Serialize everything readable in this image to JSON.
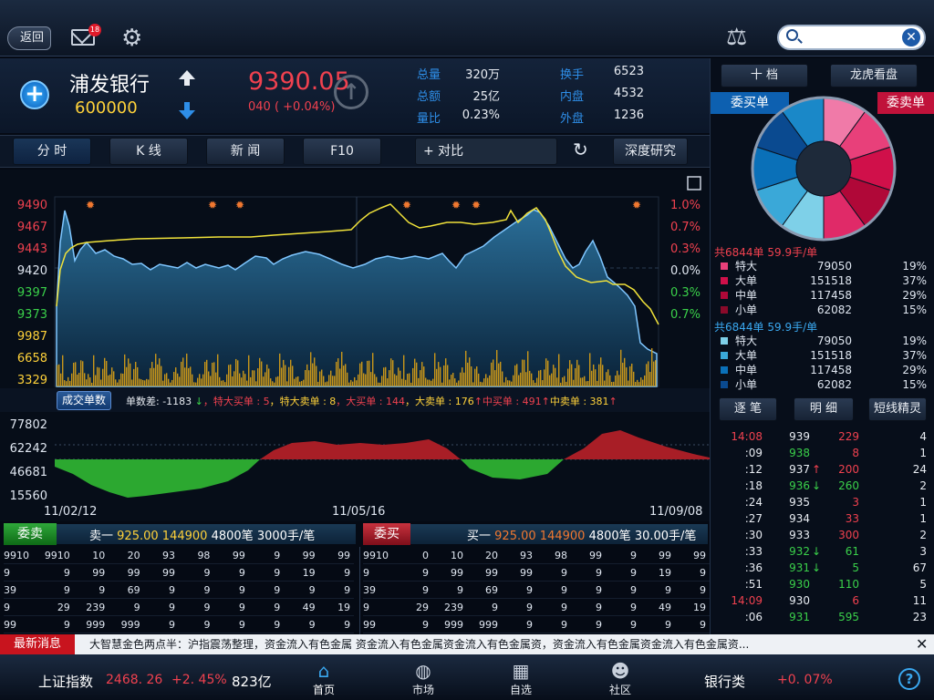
{
  "topbar": {
    "back_label": "返回",
    "mail_count": "18"
  },
  "stock": {
    "name": "浦发银行",
    "code": "600000",
    "price": "9390.05",
    "change": "040 ( +0.04%)",
    "stats": [
      {
        "k": "总量",
        "v": "320万"
      },
      {
        "k": "总额",
        "v": "25亿"
      },
      {
        "k": "量比",
        "v": "0.23%"
      },
      {
        "k": "换手",
        "v": "6523"
      },
      {
        "k": "内盘",
        "v": "4532"
      },
      {
        "k": "外盘",
        "v": "1236"
      }
    ]
  },
  "tabs": [
    "分 时",
    "K 线",
    "新 闻",
    "F10",
    "+ 对比",
    "深度研究"
  ],
  "chart": {
    "left_ticks": [
      {
        "t": "9490",
        "c": "#f0414f"
      },
      {
        "t": "9467",
        "c": "#f0414f"
      },
      {
        "t": "9443",
        "c": "#f0414f"
      },
      {
        "t": "9420",
        "c": "#dfe6f0"
      },
      {
        "t": "9397",
        "c": "#3ad04a"
      },
      {
        "t": "9373",
        "c": "#3ad04a"
      },
      {
        "t": "9987",
        "c": "#ffd23a"
      },
      {
        "t": "6658",
        "c": "#ffd23a"
      },
      {
        "t": "3329",
        "c": "#ffd23a"
      }
    ],
    "right_ticks": [
      {
        "t": "1.0%",
        "c": "#f0414f"
      },
      {
        "t": "0.7%",
        "c": "#f0414f"
      },
      {
        "t": "0.3%",
        "c": "#f0414f"
      },
      {
        "t": "0.0%",
        "c": "#dfe6f0"
      },
      {
        "t": "0.3%",
        "c": "#3ad04a"
      },
      {
        "t": "0.7%",
        "c": "#3ad04a"
      }
    ]
  },
  "volume_bar": {
    "label": "成交单数",
    "items": [
      {
        "t": "单数差: -1183 ",
        "c": "#e8ecf2"
      },
      {
        "t": "↓",
        "c": "#3ad04a"
      },
      {
        "t": "，特大买单  : 5",
        "c": "#f0414f"
      },
      {
        "t": "，特大卖单 : 8",
        "c": "#ffd23a"
      },
      {
        "t": "，大买单 : 144",
        "c": "#f0414f"
      },
      {
        "t": "，大卖单 : 176",
        "c": "#ffd23a"
      },
      {
        "t": "↑",
        "c": "#f0414f"
      },
      {
        "t": "中买单 : 491",
        "c": "#f0414f"
      },
      {
        "t": "↑",
        "c": "#f0414f"
      },
      {
        "t": "中卖单 : 381",
        "c": "#ffd23a"
      },
      {
        "t": "↑",
        "c": "#f0414f"
      }
    ]
  },
  "pankou_ticks": [
    "77802",
    "62242",
    "46681",
    "15560"
  ],
  "dates": [
    "11/02/12",
    "11/05/16",
    "11/09/08"
  ],
  "wm": {
    "sell_label": "委卖",
    "buy_label": "委买",
    "sell_head": [
      "卖一",
      "925.00",
      "144900",
      "4800笔",
      "3000手/笔"
    ],
    "buy_head": [
      "买一",
      "925.00",
      "144900",
      "4800笔",
      "30.00手/笔"
    ],
    "sell_rows": [
      [
        "9910",
        "9910",
        "10",
        "20",
        "93",
        "98",
        "99",
        "9",
        "99",
        "99"
      ],
      [
        "9",
        "9",
        "99",
        "99",
        "99",
        "9",
        "9",
        "9",
        "19",
        "9"
      ],
      [
        "39",
        "9",
        "9",
        "69",
        "9",
        "9",
        "9",
        "9",
        "9",
        "9"
      ],
      [
        "9",
        "29",
        "239",
        "9",
        "9",
        "9",
        "9",
        "9",
        "49",
        "19"
      ],
      [
        "99",
        "9",
        "999",
        "999",
        "9",
        "9",
        "9",
        "9",
        "9",
        "9"
      ]
    ],
    "buy_rows": [
      [
        "9910",
        "0",
        "10",
        "20",
        "93",
        "98",
        "99",
        "9",
        "99",
        "99"
      ],
      [
        "9",
        "9",
        "99",
        "99",
        "99",
        "9",
        "9",
        "9",
        "19",
        "9"
      ],
      [
        "39",
        "9",
        "9",
        "69",
        "9",
        "9",
        "9",
        "9",
        "9",
        "9"
      ],
      [
        "9",
        "29",
        "239",
        "9",
        "9",
        "9",
        "9",
        "9",
        "49",
        "19"
      ],
      [
        "99",
        "9",
        "999",
        "999",
        "9",
        "9",
        "9",
        "9",
        "9",
        "9"
      ]
    ]
  },
  "right": {
    "tabs": [
      "十 档",
      "龙虎看盘"
    ],
    "buy_title": "委买单",
    "sell_title": "委卖单",
    "pie": {
      "left_colors": [
        "#7ed0e8",
        "#3aa8d8",
        "#0a70b8",
        "#0a4a90",
        "#1a88c8"
      ],
      "right_colors": [
        "#f07aa8",
        "#e8407a",
        "#d0104a",
        "#b00838",
        "#e02a68"
      ]
    },
    "sum1": "共6844单  59.9手/单",
    "group1": [
      {
        "n": "特大",
        "v": "79050",
        "p": "19%",
        "c": "#e8407a"
      },
      {
        "n": "大单",
        "v": "151518",
        "p": "37%",
        "c": "#d0104a"
      },
      {
        "n": "中单",
        "v": "117458",
        "p": "29%",
        "c": "#b00838"
      },
      {
        "n": "小单",
        "v": "62082",
        "p": "15%",
        "c": "#8a0a2a"
      }
    ],
    "sum2": "共6844单  59.9手/单",
    "group2": [
      {
        "n": "特大",
        "v": "79050",
        "p": "19%",
        "c": "#7ed0e8"
      },
      {
        "n": "大单",
        "v": "151518",
        "p": "37%",
        "c": "#3aa8d8"
      },
      {
        "n": "中单",
        "v": "117458",
        "p": "29%",
        "c": "#0a70b8"
      },
      {
        "n": "小单",
        "v": "62082",
        "p": "15%",
        "c": "#0a4a90"
      }
    ],
    "tick_tabs": [
      "逐 笔",
      "明 细",
      "短线精灵"
    ],
    "ticks": [
      {
        "t": "14:08",
        "tc": "#f0414f",
        "p": "939",
        "a": "",
        "v": "229",
        "vc": "#f0414f",
        "n": "4"
      },
      {
        "t": ":09",
        "tc": "#e8ecf2",
        "p": "938",
        "a": "",
        "v": "8",
        "vc": "#f0414f",
        "n": "1"
      },
      {
        "t": ":12",
        "tc": "#e8ecf2",
        "p": "937",
        "a": "↑",
        "ac": "#f0414f",
        "v": "200",
        "vc": "#f0414f",
        "n": "24"
      },
      {
        "t": ":18",
        "tc": "#e8ecf2",
        "p": "936",
        "a": "↓",
        "ac": "#3ad04a",
        "v": "260",
        "vc": "#3ad04a",
        "n": "2"
      },
      {
        "t": ":24",
        "tc": "#e8ecf2",
        "p": "935",
        "a": "",
        "v": "3",
        "vc": "#f0414f",
        "n": "1"
      },
      {
        "t": ":27",
        "tc": "#e8ecf2",
        "p": "934",
        "a": "",
        "v": "33",
        "vc": "#f0414f",
        "n": "1"
      },
      {
        "t": ":30",
        "tc": "#e8ecf2",
        "p": "933",
        "a": "",
        "v": "300",
        "vc": "#f0414f",
        "n": "2"
      },
      {
        "t": ":33",
        "tc": "#e8ecf2",
        "p": "932",
        "a": "↓",
        "ac": "#3ad04a",
        "v": "61",
        "vc": "#3ad04a",
        "n": "3"
      },
      {
        "t": ":36",
        "tc": "#e8ecf2",
        "p": "931",
        "a": "↓",
        "ac": "#3ad04a",
        "v": "5",
        "vc": "#3ad04a",
        "n": "67"
      },
      {
        "t": ":51",
        "tc": "#e8ecf2",
        "p": "930",
        "a": "",
        "v": "110",
        "vc": "#3ad04a",
        "n": "5"
      },
      {
        "t": "14:09",
        "tc": "#f0414f",
        "p": "930",
        "a": "",
        "v": "6",
        "vc": "#f0414f",
        "n": "11"
      },
      {
        "t": ":06",
        "tc": "#e8ecf2",
        "p": "931",
        "a": "",
        "v": "595",
        "vc": "#3ad04a",
        "n": "23"
      }
    ]
  },
  "news": {
    "label": "最新消息",
    "text": "大智慧金色两点半：沪指震荡整理，资金流入有色金属  资金流入有色金属资金流入有色金属资，资金流入有色金属资金流入有色金属资..."
  },
  "bottom": {
    "index_name": "上证指数",
    "index_value": "2468. 26",
    "index_change": "+2. 45%",
    "index_amount": "823亿",
    "nav": [
      {
        "label": "首页",
        "icon": "home-icon"
      },
      {
        "label": "市场",
        "icon": "globe-icon"
      },
      {
        "label": "自选",
        "icon": "calculator-icon"
      },
      {
        "label": "社区",
        "icon": "community-icon"
      }
    ],
    "sector": "银行类",
    "sector_change": "+0. 07%"
  }
}
